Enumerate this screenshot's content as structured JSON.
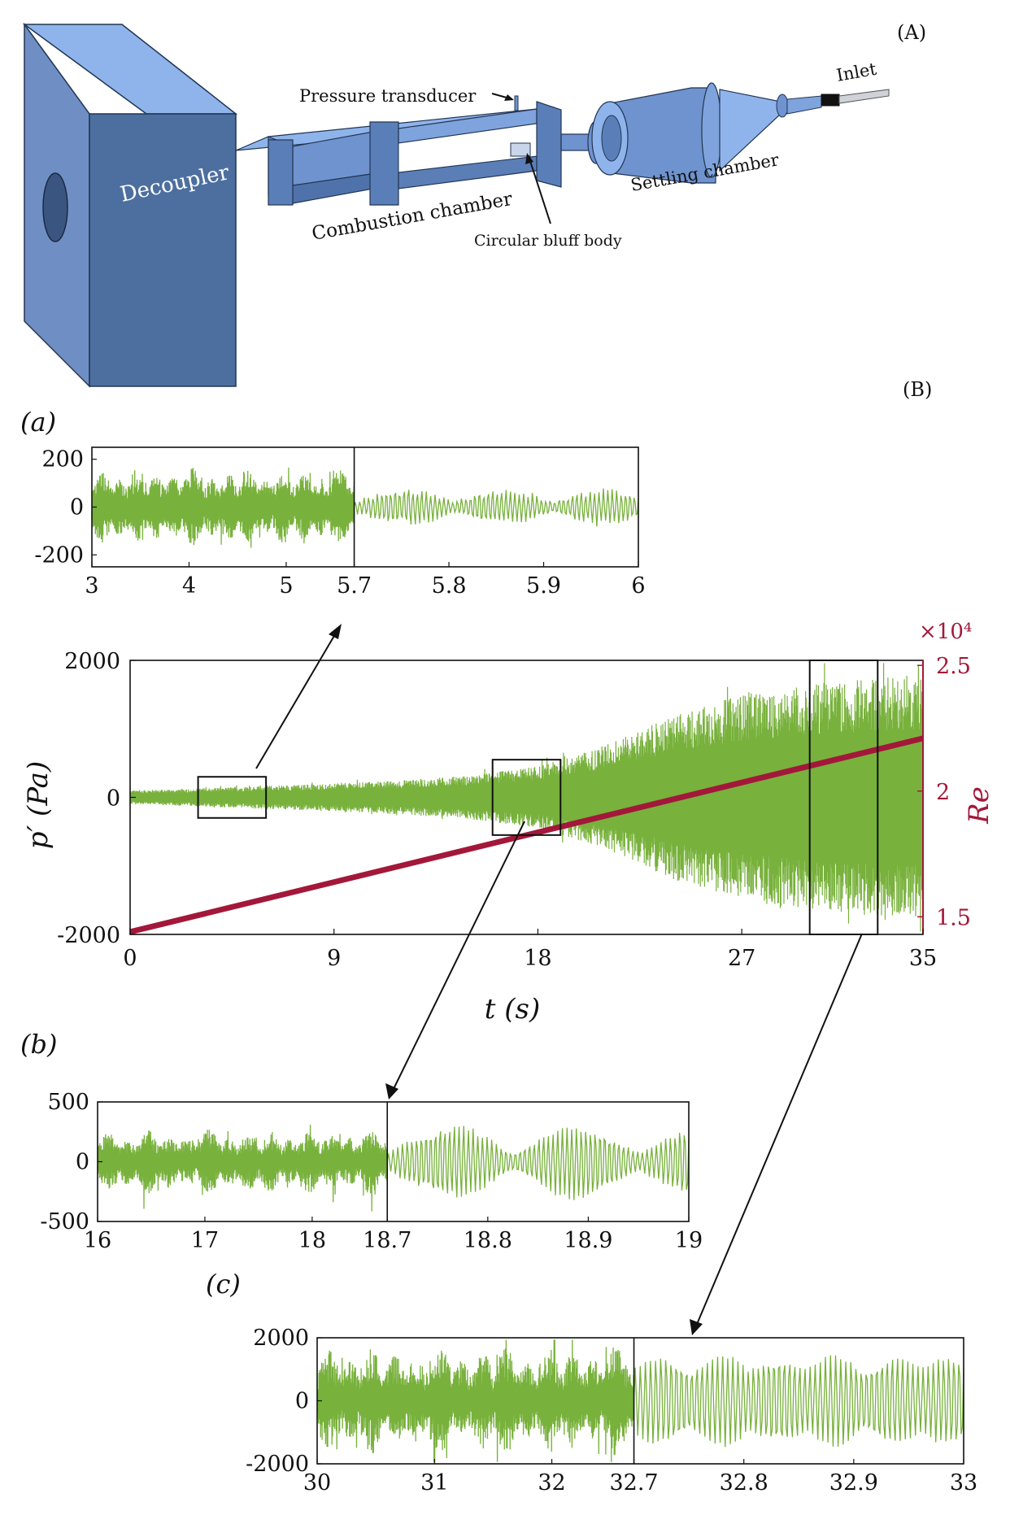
{
  "panel_labels": {
    "A": "(A)",
    "B": "(B)",
    "a": "(a)",
    "b": "(b)",
    "c": "(c)"
  },
  "diagram": {
    "labels": {
      "pressure_transducer": "Pressure transducer",
      "inlet": "Inlet",
      "decoupler": "Decoupler",
      "settling_chamber": "Settling chamber",
      "combustion_chamber": "Combustion chamber",
      "bluff_body": "Circular bluff body"
    },
    "colors": {
      "face_front": "#4d6fa0",
      "face_top": "#8fb4ec",
      "face_side": "#6e93cf",
      "edge": "#223552"
    }
  },
  "colors": {
    "signal": "#78b13c",
    "re_line": "#a3183a",
    "axis": "#111111"
  },
  "chart_data": [
    {
      "id": "main",
      "type": "line",
      "xlabel": "t (s)",
      "ylabel": "p′ (Pa)",
      "y2label": "Re",
      "y2_multiplier": "×10⁴",
      "xlim": [
        0,
        35
      ],
      "ylim": [
        -2000,
        2000
      ],
      "y2lim": [
        1.43,
        2.52
      ],
      "xticks": [
        "0",
        "9",
        "18",
        "27",
        "35"
      ],
      "yticks": [
        "-2000",
        "0",
        "2000"
      ],
      "y2ticks": [
        "1.5",
        "2",
        "2.5"
      ],
      "series": [
        {
          "name": "",
          "kind": "oscillating pressure signal",
          "envelope": {
            "t": [
              0,
              3,
              6,
              9,
              12,
              15,
              18,
              20,
              22,
              24,
              27,
              30,
              33,
              35
            ],
            "amp": [
              100,
              130,
              170,
              200,
              250,
              320,
              450,
              650,
              900,
              1200,
              1500,
              1650,
              1750,
              1800
            ]
          }
        },
        {
          "name": "",
          "kind": "Reynolds number ramp",
          "x": [
            0,
            35
          ],
          "y": [
            1.44,
            2.21
          ]
        }
      ],
      "zoom_windows": [
        {
          "t": [
            3,
            6
          ],
          "p": [
            -300,
            300
          ]
        },
        {
          "t": [
            16,
            19
          ],
          "p": [
            -550,
            550
          ]
        },
        {
          "t": [
            30,
            33
          ],
          "p": [
            -2000,
            2000
          ]
        }
      ]
    },
    {
      "id": "a",
      "type": "line",
      "xlim": [
        3,
        6
      ],
      "ylim": [
        -250,
        250
      ],
      "xticks": [
        "3",
        "4",
        "5",
        "5.7",
        "5.8",
        "5.9",
        "6"
      ],
      "yticks": [
        "-200",
        "0",
        "200"
      ],
      "segments": [
        {
          "t": [
            3,
            5.7
          ],
          "amp": 140,
          "kind": "aperiodic"
        },
        {
          "t": [
            5.7,
            6
          ],
          "amp": 85,
          "kind": "bursting"
        }
      ]
    },
    {
      "id": "b",
      "type": "line",
      "xlim": [
        16,
        19
      ],
      "ylim": [
        -500,
        500
      ],
      "xticks": [
        "16",
        "17",
        "18",
        "18.7",
        "18.8",
        "18.9",
        "19"
      ],
      "yticks": [
        "-500",
        "0",
        "500"
      ],
      "segments": [
        {
          "t": [
            16,
            18.7
          ],
          "amp": 230,
          "kind": "aperiodic"
        },
        {
          "t": [
            18.7,
            19
          ],
          "amp": 330,
          "kind": "intermittent"
        }
      ]
    },
    {
      "id": "c",
      "type": "line",
      "xlim": [
        30,
        33
      ],
      "ylim": [
        -2000,
        2000
      ],
      "xticks": [
        "30",
        "31",
        "32",
        "32.7",
        "32.8",
        "32.9",
        "33"
      ],
      "yticks": [
        "-2000",
        "0",
        "2000"
      ],
      "segments": [
        {
          "t": [
            30,
            32.7
          ],
          "amp": 1500,
          "kind": "dense"
        },
        {
          "t": [
            32.7,
            33
          ],
          "amp": 1500,
          "kind": "periodic"
        }
      ]
    }
  ]
}
